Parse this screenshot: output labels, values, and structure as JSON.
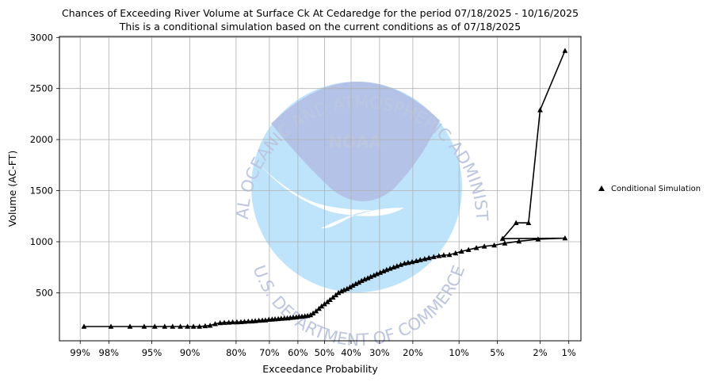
{
  "chart_data": {
    "type": "line",
    "title": "Chances of Exceeding River Volume at Surface Ck At Cedaredge for the period 07/18/2025 - 10/16/2025",
    "subtitle": "This is a conditional simulation based on the current conditions as of 07/18/2025",
    "xlabel": "Exceedance Probability",
    "ylabel": "Volume (AC-FT)",
    "x_scale": "normal-probability",
    "grid": true,
    "legend_placement": "right",
    "ylim": [
      30,
      3010
    ],
    "xlim": [
      99.42,
      0.73
    ],
    "x_ticks": [
      {
        "value": 99,
        "label": "99%"
      },
      {
        "value": 98,
        "label": "98%"
      },
      {
        "value": 95,
        "label": "95%"
      },
      {
        "value": 90,
        "label": "90%"
      },
      {
        "value": 80,
        "label": "80%"
      },
      {
        "value": 70,
        "label": "70%"
      },
      {
        "value": 60,
        "label": "60%"
      },
      {
        "value": 50,
        "label": "50%"
      },
      {
        "value": 40,
        "label": "40%"
      },
      {
        "value": 30,
        "label": "30%"
      },
      {
        "value": 20,
        "label": "20%"
      },
      {
        "value": 10,
        "label": "10%"
      },
      {
        "value": 5,
        "label": "5%"
      },
      {
        "value": 2,
        "label": "2%"
      },
      {
        "value": 1,
        "label": "1%"
      }
    ],
    "y_ticks": [
      {
        "value": 500,
        "label": "500"
      },
      {
        "value": 1000,
        "label": "1000"
      },
      {
        "value": 1500,
        "label": "1500"
      },
      {
        "value": 2000,
        "label": "2000"
      },
      {
        "value": 2500,
        "label": "2500"
      },
      {
        "value": 3000,
        "label": "3000"
      }
    ],
    "series": [
      {
        "name": "Conditional Simulation",
        "color": "#000000",
        "marker": "triangle",
        "points": [
          [
            98.9,
            170
          ],
          [
            97.9,
            170
          ],
          [
            96.8,
            170
          ],
          [
            95.7,
            170
          ],
          [
            94.7,
            170
          ],
          [
            93.6,
            170
          ],
          [
            92.6,
            170
          ],
          [
            91.5,
            170
          ],
          [
            90.4,
            170
          ],
          [
            89.4,
            170
          ],
          [
            88.3,
            170
          ],
          [
            87.2,
            175
          ],
          [
            86.2,
            180
          ],
          [
            85.1,
            195
          ],
          [
            84.0,
            205
          ],
          [
            83.0,
            208
          ],
          [
            81.9,
            210
          ],
          [
            80.9,
            212
          ],
          [
            79.8,
            213
          ],
          [
            78.7,
            215
          ],
          [
            77.7,
            218
          ],
          [
            76.6,
            220
          ],
          [
            75.5,
            222
          ],
          [
            74.5,
            225
          ],
          [
            73.4,
            228
          ],
          [
            72.3,
            230
          ],
          [
            71.3,
            232
          ],
          [
            70.2,
            238
          ],
          [
            69.1,
            240
          ],
          [
            68.1,
            243
          ],
          [
            67.0,
            245
          ],
          [
            66.0,
            248
          ],
          [
            64.9,
            250
          ],
          [
            63.8,
            252
          ],
          [
            62.8,
            255
          ],
          [
            61.7,
            258
          ],
          [
            60.6,
            262
          ],
          [
            59.6,
            265
          ],
          [
            58.5,
            268
          ],
          [
            57.4,
            272
          ],
          [
            56.4,
            275
          ],
          [
            55.3,
            282
          ],
          [
            54.3,
            300
          ],
          [
            53.2,
            320
          ],
          [
            52.1,
            345
          ],
          [
            51.1,
            368
          ],
          [
            50.0,
            390
          ],
          [
            48.9,
            410
          ],
          [
            47.9,
            432
          ],
          [
            46.8,
            455
          ],
          [
            45.7,
            478
          ],
          [
            44.7,
            500
          ],
          [
            43.6,
            515
          ],
          [
            42.6,
            528
          ],
          [
            41.5,
            540
          ],
          [
            40.4,
            555
          ],
          [
            39.4,
            572
          ],
          [
            38.3,
            588
          ],
          [
            37.2,
            602
          ],
          [
            36.2,
            618
          ],
          [
            35.1,
            632
          ],
          [
            34.0,
            645
          ],
          [
            33.0,
            658
          ],
          [
            31.9,
            672
          ],
          [
            30.9,
            685
          ],
          [
            29.8,
            698
          ],
          [
            28.7,
            712
          ],
          [
            27.7,
            725
          ],
          [
            26.6,
            738
          ],
          [
            25.5,
            750
          ],
          [
            24.5,
            762
          ],
          [
            23.4,
            775
          ],
          [
            22.3,
            788
          ],
          [
            21.3,
            795
          ],
          [
            20.2,
            802
          ],
          [
            19.1,
            812
          ],
          [
            18.1,
            822
          ],
          [
            17.0,
            832
          ],
          [
            16.0,
            842
          ],
          [
            14.9,
            852
          ],
          [
            13.8,
            862
          ],
          [
            12.8,
            868
          ],
          [
            11.7,
            872
          ],
          [
            10.6,
            888
          ],
          [
            9.6,
            905
          ],
          [
            8.5,
            922
          ],
          [
            7.4,
            940
          ],
          [
            6.4,
            955
          ],
          [
            5.3,
            965
          ],
          [
            4.3,
            985
          ],
          [
            3.2,
            1005
          ],
          [
            2.1,
            1025
          ],
          [
            1.1,
            1035
          ],
          [
            4.5,
            1030
          ],
          [
            3.4,
            1185
          ],
          [
            2.6,
            1185
          ],
          [
            2.0,
            2290
          ],
          [
            1.1,
            2870
          ]
        ]
      }
    ]
  },
  "watermark": {
    "top_text": "NATIONAL OCEANIC AND ATMOSPHERIC ADMINISTRATION",
    "bottom_text": "U.S. DEPARTMENT OF COMMERCE",
    "logo_text": "NOAA",
    "colors": {
      "dark": "#9aaede",
      "light": "#a8dcfa",
      "text": "#a6b3d6"
    }
  }
}
